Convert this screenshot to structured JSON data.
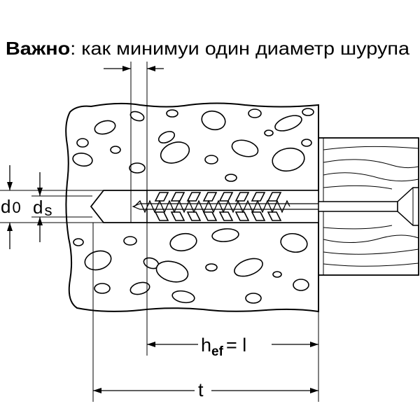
{
  "title": {
    "bold": "Важно",
    "rest": ": как минимуи один диаметр шурупа"
  },
  "labels": {
    "d0_main": "d",
    "d0_sub": "0",
    "ds_main": "d",
    "ds_sub": "s",
    "hef_main": "h",
    "hef_sub": "ef",
    "hef_rest": "= l",
    "t": "t"
  },
  "colors": {
    "line": "#000000",
    "background": "#ffffff"
  }
}
